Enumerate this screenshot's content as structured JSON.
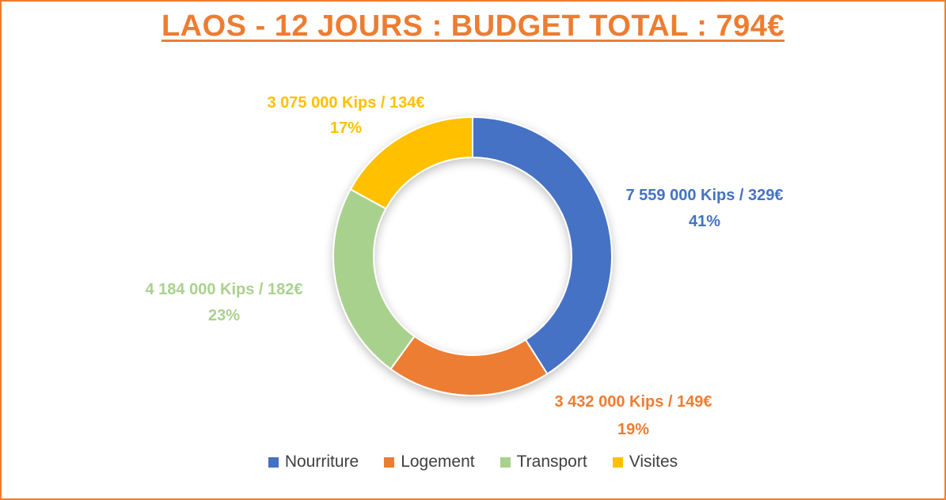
{
  "chart_data": {
    "type": "pie",
    "variant": "donut",
    "title": "LAOS - 12 JOURS : BUDGET TOTAL : 794€",
    "legend_position": "bottom",
    "series": [
      {
        "name": "Nourriture",
        "value": 41,
        "color": "#4472C4",
        "label_line1": "7 559 000 Kips / 329€",
        "label_line2": "41%"
      },
      {
        "name": "Logement",
        "value": 19,
        "color": "#ED7D31",
        "label_line1": "3 432 000 Kips / 149€",
        "label_line2": "19%"
      },
      {
        "name": "Transport",
        "value": 23,
        "color": "#A9D18E",
        "label_line1": "4 184 000 Kips / 182€",
        "label_line2": "23%"
      },
      {
        "name": "Visites",
        "value": 17,
        "color": "#FFC000",
        "label_line1": "3 075 000 Kips / 134€",
        "label_line2": "17%"
      }
    ]
  },
  "colors": {
    "border": "#ED7D31",
    "title": "#ED7D31",
    "legend_text": "#404040"
  }
}
